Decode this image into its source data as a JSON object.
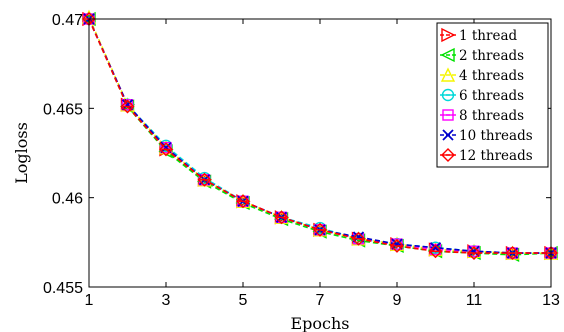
{
  "chart_data": {
    "type": "line",
    "title": "",
    "xlabel": "Epochs",
    "ylabel": "Logloss",
    "xlim": [
      1,
      13
    ],
    "ylim": [
      0.455,
      0.47
    ],
    "xticks": [
      1,
      3,
      5,
      7,
      9,
      11,
      13
    ],
    "yticks": [
      0.455,
      0.46,
      0.465,
      0.47
    ],
    "ytick_labels": [
      "0.455",
      "0.46",
      "0.465",
      "0.47"
    ],
    "grid": false,
    "legend_position": "top-right",
    "x": [
      1,
      2,
      3,
      4,
      5,
      6,
      7,
      8,
      9,
      10,
      11,
      12,
      13
    ],
    "series": [
      {
        "name": "1 thread",
        "color": "#ff0000",
        "marker": "triangle-right",
        "values": [
          0.47,
          0.4652,
          0.4627,
          0.461,
          0.4598,
          0.4589,
          0.4582,
          0.4577,
          0.4574,
          0.4571,
          0.457,
          0.4569,
          0.4569
        ]
      },
      {
        "name": "2 threads",
        "color": "#00e000",
        "marker": "triangle-left",
        "values": [
          0.47,
          0.4651,
          0.4626,
          0.4609,
          0.4597,
          0.4588,
          0.4581,
          0.4576,
          0.4573,
          0.457,
          0.4569,
          0.4568,
          0.4569
        ]
      },
      {
        "name": "4 threads",
        "color": "#f5f500",
        "marker": "triangle-up",
        "values": [
          0.4701,
          0.4652,
          0.4628,
          0.461,
          0.4598,
          0.4589,
          0.4582,
          0.4577,
          0.4574,
          0.4571,
          0.457,
          0.4569,
          0.4569
        ]
      },
      {
        "name": "6 threads",
        "color": "#00d8d8",
        "marker": "circle-line",
        "values": [
          0.47,
          0.4652,
          0.4629,
          0.4611,
          0.4598,
          0.4589,
          0.4583,
          0.4577,
          0.4574,
          0.4572,
          0.457,
          0.4569,
          0.4569
        ]
      },
      {
        "name": "8 threads",
        "color": "#ff00ff",
        "marker": "square-line",
        "values": [
          0.47,
          0.4652,
          0.4628,
          0.461,
          0.4598,
          0.4589,
          0.4582,
          0.4577,
          0.4574,
          0.4571,
          0.457,
          0.4569,
          0.4569
        ]
      },
      {
        "name": "10 threads",
        "color": "#0000cc",
        "marker": "x",
        "values": [
          0.47,
          0.4652,
          0.4628,
          0.461,
          0.4598,
          0.4589,
          0.4582,
          0.4578,
          0.4574,
          0.4572,
          0.457,
          0.4569,
          0.4569
        ]
      },
      {
        "name": "12 threads",
        "color": "#ff0000",
        "marker": "diamond",
        "values": [
          0.47,
          0.4651,
          0.4627,
          0.461,
          0.4598,
          0.4589,
          0.4582,
          0.4577,
          0.4573,
          0.457,
          0.4569,
          0.4569,
          0.4569
        ]
      }
    ]
  }
}
